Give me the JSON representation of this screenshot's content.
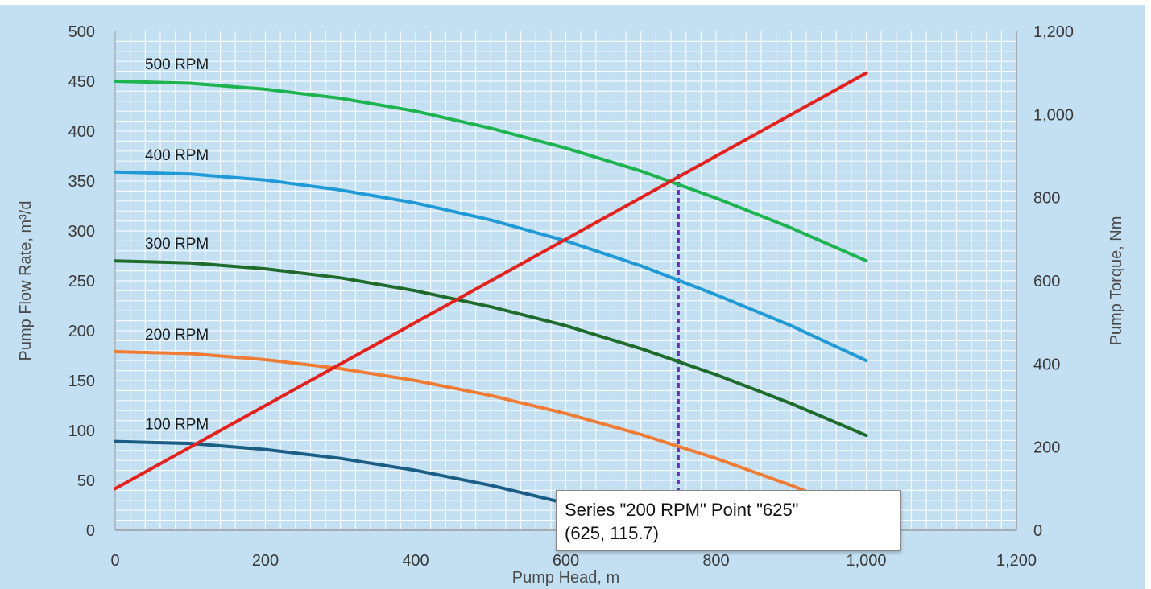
{
  "chart_data": {
    "type": "line",
    "title": "",
    "xlabel": "Pump Head, m",
    "ylabel": "Pump Flow Rate, m³/d",
    "y2label": "Pump Torque, Nm",
    "xlim": [
      0,
      1200
    ],
    "ylim": [
      0,
      500
    ],
    "y2lim": [
      0,
      1200
    ],
    "x_ticks": [
      "0",
      "200",
      "400",
      "600",
      "800",
      "1,000",
      "1,200"
    ],
    "y_ticks": [
      "0",
      "50",
      "100",
      "150",
      "200",
      "250",
      "300",
      "350",
      "400",
      "450",
      "500"
    ],
    "y2_ticks": [
      "0",
      "200",
      "400",
      "600",
      "800",
      "1,000",
      "1,200"
    ],
    "grid": true,
    "series": [
      {
        "name": "500 RPM",
        "axis": "left",
        "color": "#1db34e",
        "x": [
          0,
          100,
          200,
          300,
          400,
          500,
          600,
          700,
          800,
          900,
          1000
        ],
        "values": [
          450,
          448,
          442,
          433,
          420,
          403,
          383,
          360,
          333,
          303,
          270
        ]
      },
      {
        "name": "400 RPM",
        "axis": "left",
        "color": "#1f9ad6",
        "x": [
          0,
          100,
          200,
          300,
          400,
          500,
          600,
          700,
          800,
          900,
          1000
        ],
        "values": [
          359,
          357,
          351,
          341,
          328,
          311,
          290,
          265,
          236,
          205,
          170
        ]
      },
      {
        "name": "300 RPM",
        "axis": "left",
        "color": "#1e6b2c",
        "x": [
          0,
          100,
          200,
          300,
          400,
          500,
          600,
          700,
          800,
          900,
          1000
        ],
        "values": [
          270,
          268,
          262,
          253,
          240,
          224,
          205,
          182,
          156,
          127,
          95
        ]
      },
      {
        "name": "200 RPM",
        "axis": "left",
        "color": "#f07b32",
        "x": [
          0,
          100,
          200,
          300,
          400,
          500,
          600,
          700,
          800,
          900,
          1000
        ],
        "values": [
          179,
          177,
          171,
          162,
          150,
          135,
          117,
          96,
          72,
          45,
          15
        ]
      },
      {
        "name": "100 RPM",
        "axis": "left",
        "color": "#1a5e85",
        "x": [
          0,
          100,
          200,
          300,
          400,
          500,
          600,
          700
        ],
        "values": [
          89,
          87,
          81,
          72,
          60,
          45,
          27,
          6
        ]
      },
      {
        "name": "Torque",
        "axis": "right",
        "color": "#e8201c",
        "x": [
          0,
          1000
        ],
        "values": [
          100,
          1100
        ]
      }
    ],
    "marker_line": {
      "x": 750,
      "color": "#6a2db8",
      "style": "dotted"
    },
    "tooltip": {
      "line1": "Series \"200 RPM\" Point \"625\"",
      "line2": "(625, 115.7)"
    }
  }
}
